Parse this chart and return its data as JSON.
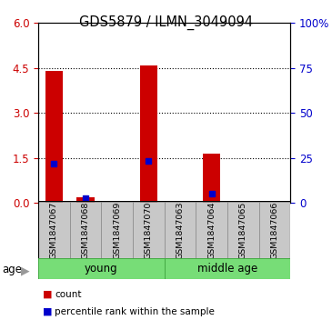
{
  "title": "GDS5879 / ILMN_3049094",
  "samples": [
    "GSM1847067",
    "GSM1847068",
    "GSM1847069",
    "GSM1847070",
    "GSM1847063",
    "GSM1847064",
    "GSM1847065",
    "GSM1847066"
  ],
  "count_values": [
    4.4,
    0.2,
    0.0,
    4.6,
    0.0,
    1.65,
    0.0,
    0.0
  ],
  "percentile_values": [
    22.0,
    2.5,
    0.0,
    23.5,
    0.0,
    5.0,
    0.0,
    0.0
  ],
  "groups": [
    {
      "label": "young",
      "indices": [
        0,
        1,
        2,
        3
      ]
    },
    {
      "label": "middle age",
      "indices": [
        4,
        5,
        6,
        7
      ]
    }
  ],
  "age_label": "age",
  "left_ylim": [
    0,
    6
  ],
  "left_yticks": [
    0,
    1.5,
    3.0,
    4.5,
    6.0
  ],
  "right_ylim": [
    0,
    100
  ],
  "right_yticks": [
    0,
    25,
    50,
    75,
    100
  ],
  "right_yticklabels": [
    "0",
    "25",
    "50",
    "75",
    "100%"
  ],
  "bar_color": "#cc0000",
  "marker_color": "#0000cc",
  "bg_color": "#ffffff",
  "tick_color_left": "#cc0000",
  "tick_color_right": "#0000cc",
  "bar_width": 0.55,
  "marker_size": 5,
  "group_color": "#77dd77",
  "sample_box_color": "#c8c8c8",
  "legend_items": [
    {
      "label": "count",
      "color": "#cc0000"
    },
    {
      "label": "percentile rank within the sample",
      "color": "#0000cc"
    }
  ]
}
